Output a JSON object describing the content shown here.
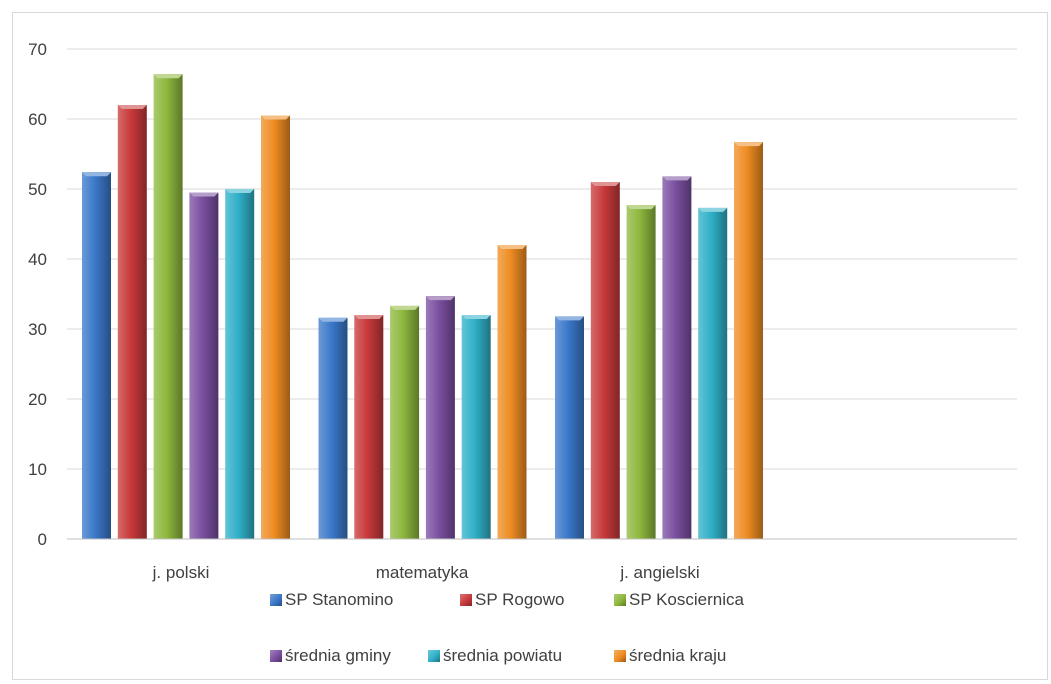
{
  "chart_data": {
    "type": "bar",
    "categories": [
      "j. polski",
      "matematyka",
      "j. angielski"
    ],
    "series": [
      {
        "name": "SP Stanomino",
        "values": [
          52.4,
          31.6,
          31.8
        ],
        "color": "#3a78c9"
      },
      {
        "name": "SP Rogowo",
        "values": [
          62.0,
          32.0,
          51.0
        ],
        "color": "#c8393a"
      },
      {
        "name": "SP Kosciernica",
        "values": [
          66.4,
          33.3,
          47.7
        ],
        "color": "#8db83d"
      },
      {
        "name": "średnia gminy",
        "values": [
          49.5,
          34.7,
          51.8
        ],
        "color": "#7a4fa0"
      },
      {
        "name": "średnia powiatu",
        "values": [
          50.0,
          32.0,
          47.3
        ],
        "color": "#2fb0c8"
      },
      {
        "name": "średnia kraju",
        "values": [
          60.5,
          42.0,
          56.7
        ],
        "color": "#ef8c22"
      }
    ],
    "ylim": [
      0,
      70
    ],
    "yticks": [
      "0",
      "10",
      "20",
      "30",
      "40",
      "50",
      "60",
      "70"
    ],
    "grid": true,
    "legend_position": "bottom"
  }
}
